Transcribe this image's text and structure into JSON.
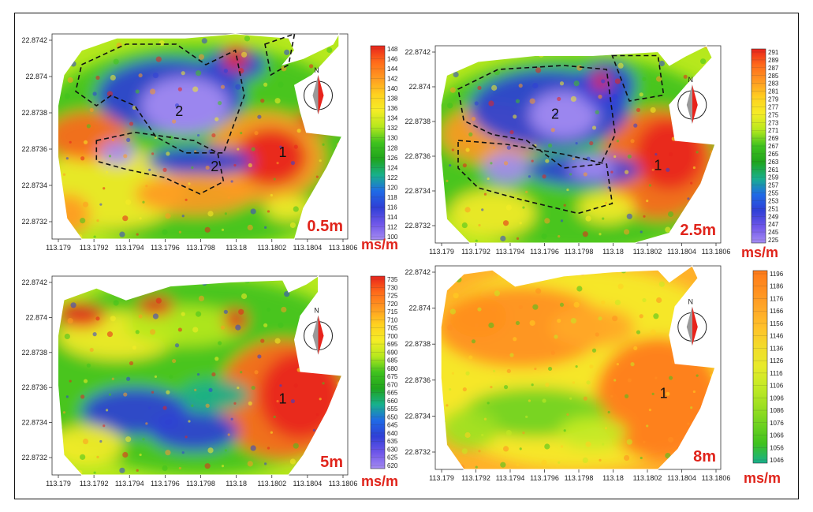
{
  "chart_data": [
    {
      "type": "heatmap",
      "x_ticks": [
        "113.179",
        "113.1792",
        "113.1794",
        "113.1796",
        "113.1798",
        "113.18",
        "113.1802",
        "113.1804",
        "113.1806"
      ],
      "y_ticks": [
        "22.8742",
        "22.874",
        "22.8738",
        "22.8736",
        "22.8734",
        "22.8732"
      ],
      "depth_label": "0.5m",
      "unit": "ms/m",
      "colorbar_ticks": [
        "148",
        "146",
        "144",
        "142",
        "140",
        "138",
        "136",
        "134",
        "132",
        "130",
        "128",
        "126",
        "124",
        "122",
        "120",
        "118",
        "116",
        "114",
        "112",
        "100"
      ],
      "zone_labels": [
        "1",
        "2",
        "2"
      ]
    },
    {
      "type": "heatmap",
      "x_ticks": [
        "113.179",
        "113.1792",
        "113.1794",
        "113.1796",
        "113.1798",
        "113.18",
        "113.1802",
        "113.1804",
        "113.1806"
      ],
      "y_ticks": [
        "22.8742",
        "22.874",
        "22.8738",
        "22.8736",
        "22.8734",
        "22.8732"
      ],
      "depth_label": "2.5m",
      "unit": "ms/m",
      "colorbar_ticks": [
        "291",
        "289",
        "287",
        "285",
        "283",
        "281",
        "279",
        "277",
        "275",
        "273",
        "271",
        "269",
        "267",
        "265",
        "263",
        "261",
        "259",
        "257",
        "255",
        "253",
        "251",
        "249",
        "247",
        "245",
        "225"
      ],
      "zone_labels": [
        "1",
        "2"
      ]
    },
    {
      "type": "heatmap",
      "x_ticks": [
        "113.179",
        "113.1792",
        "113.1794",
        "113.1796",
        "113.1798",
        "113.18",
        "113.1802",
        "113.1804",
        "113.1806"
      ],
      "y_ticks": [
        "22.8742",
        "22.874",
        "22.8738",
        "22.8736",
        "22.8734",
        "22.8732"
      ],
      "depth_label": "5m",
      "unit": "ms/m",
      "colorbar_ticks": [
        "735",
        "730",
        "725",
        "720",
        "715",
        "710",
        "705",
        "700",
        "695",
        "690",
        "685",
        "680",
        "675",
        "670",
        "665",
        "660",
        "655",
        "650",
        "645",
        "640",
        "635",
        "630",
        "625",
        "620"
      ],
      "zone_labels": [
        "1"
      ]
    },
    {
      "type": "heatmap",
      "x_ticks": [
        "113.179",
        "113.1792",
        "113.1794",
        "113.1796",
        "113.1798",
        "113.18",
        "113.1802",
        "113.1804",
        "113.1806"
      ],
      "y_ticks": [
        "22.8742",
        "22.874",
        "22.8738",
        "22.8736",
        "22.8734",
        "22.8732"
      ],
      "depth_label": "8m",
      "unit": "ms/m",
      "colorbar_ticks": [
        "1196",
        "1186",
        "1176",
        "1166",
        "1156",
        "1146",
        "1136",
        "1126",
        "1116",
        "1106",
        "1096",
        "1086",
        "1076",
        "1066",
        "1056",
        "1046"
      ],
      "zone_labels": [
        "1"
      ]
    }
  ],
  "compass_letter": "N",
  "colors": {
    "high": "#e8231b",
    "orange": "#ff8a1e",
    "yellow": "#f5e623",
    "green": "#3fc21e",
    "blue": "#2f3fd6",
    "violet": "#a58cf2",
    "accent_text": "#e0241b"
  }
}
